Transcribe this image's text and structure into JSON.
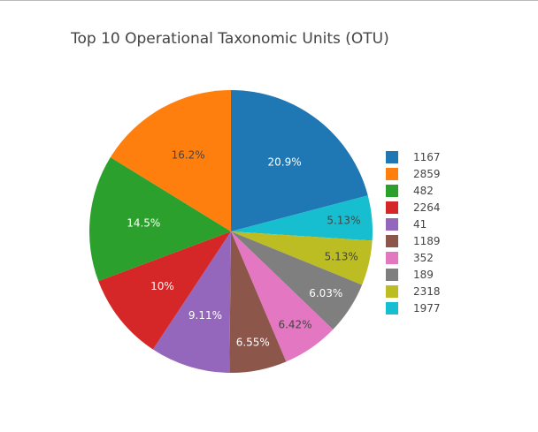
{
  "chart_data": {
    "type": "pie",
    "title": "Top 10 Operational Taxonomic Units (OTU)",
    "legend_position": "right",
    "direction": "clockwise",
    "slices": [
      {
        "label": "1167",
        "value": 20.9,
        "text": "20.9%",
        "color": "#1f77b4",
        "text_color": "#ffffff"
      },
      {
        "label": "1977",
        "value": 5.13,
        "text": "5.13%",
        "color": "#17becf",
        "text_color": "#444444"
      },
      {
        "label": "2318",
        "value": 5.13,
        "text": "5.13%",
        "color": "#bcbd22",
        "text_color": "#444444"
      },
      {
        "label": "189",
        "value": 6.03,
        "text": "6.03%",
        "color": "#7f7f7f",
        "text_color": "#ffffff"
      },
      {
        "label": "352",
        "value": 6.42,
        "text": "6.42%",
        "color": "#e377c2",
        "text_color": "#444444"
      },
      {
        "label": "1189",
        "value": 6.55,
        "text": "6.55%",
        "color": "#8c564b",
        "text_color": "#ffffff"
      },
      {
        "label": "41",
        "value": 9.11,
        "text": "9.11%",
        "color": "#9467bd",
        "text_color": "#ffffff"
      },
      {
        "label": "2264",
        "value": 10.0,
        "text": "10%",
        "color": "#d62728",
        "text_color": "#ffffff"
      },
      {
        "label": "482",
        "value": 14.5,
        "text": "14.5%",
        "color": "#2ca02c",
        "text_color": "#ffffff"
      },
      {
        "label": "2859",
        "value": 16.2,
        "text": "16.2%",
        "color": "#ff7f0e",
        "text_color": "#444444"
      }
    ],
    "legend": [
      {
        "label": "1167",
        "color": "#1f77b4"
      },
      {
        "label": "2859",
        "color": "#ff7f0e"
      },
      {
        "label": "482",
        "color": "#2ca02c"
      },
      {
        "label": "2264",
        "color": "#d62728"
      },
      {
        "label": "41",
        "color": "#9467bd"
      },
      {
        "label": "1189",
        "color": "#8c564b"
      },
      {
        "label": "352",
        "color": "#e377c2"
      },
      {
        "label": "189",
        "color": "#7f7f7f"
      },
      {
        "label": "2318",
        "color": "#bcbd22"
      },
      {
        "label": "1977",
        "color": "#17becf"
      }
    ]
  }
}
